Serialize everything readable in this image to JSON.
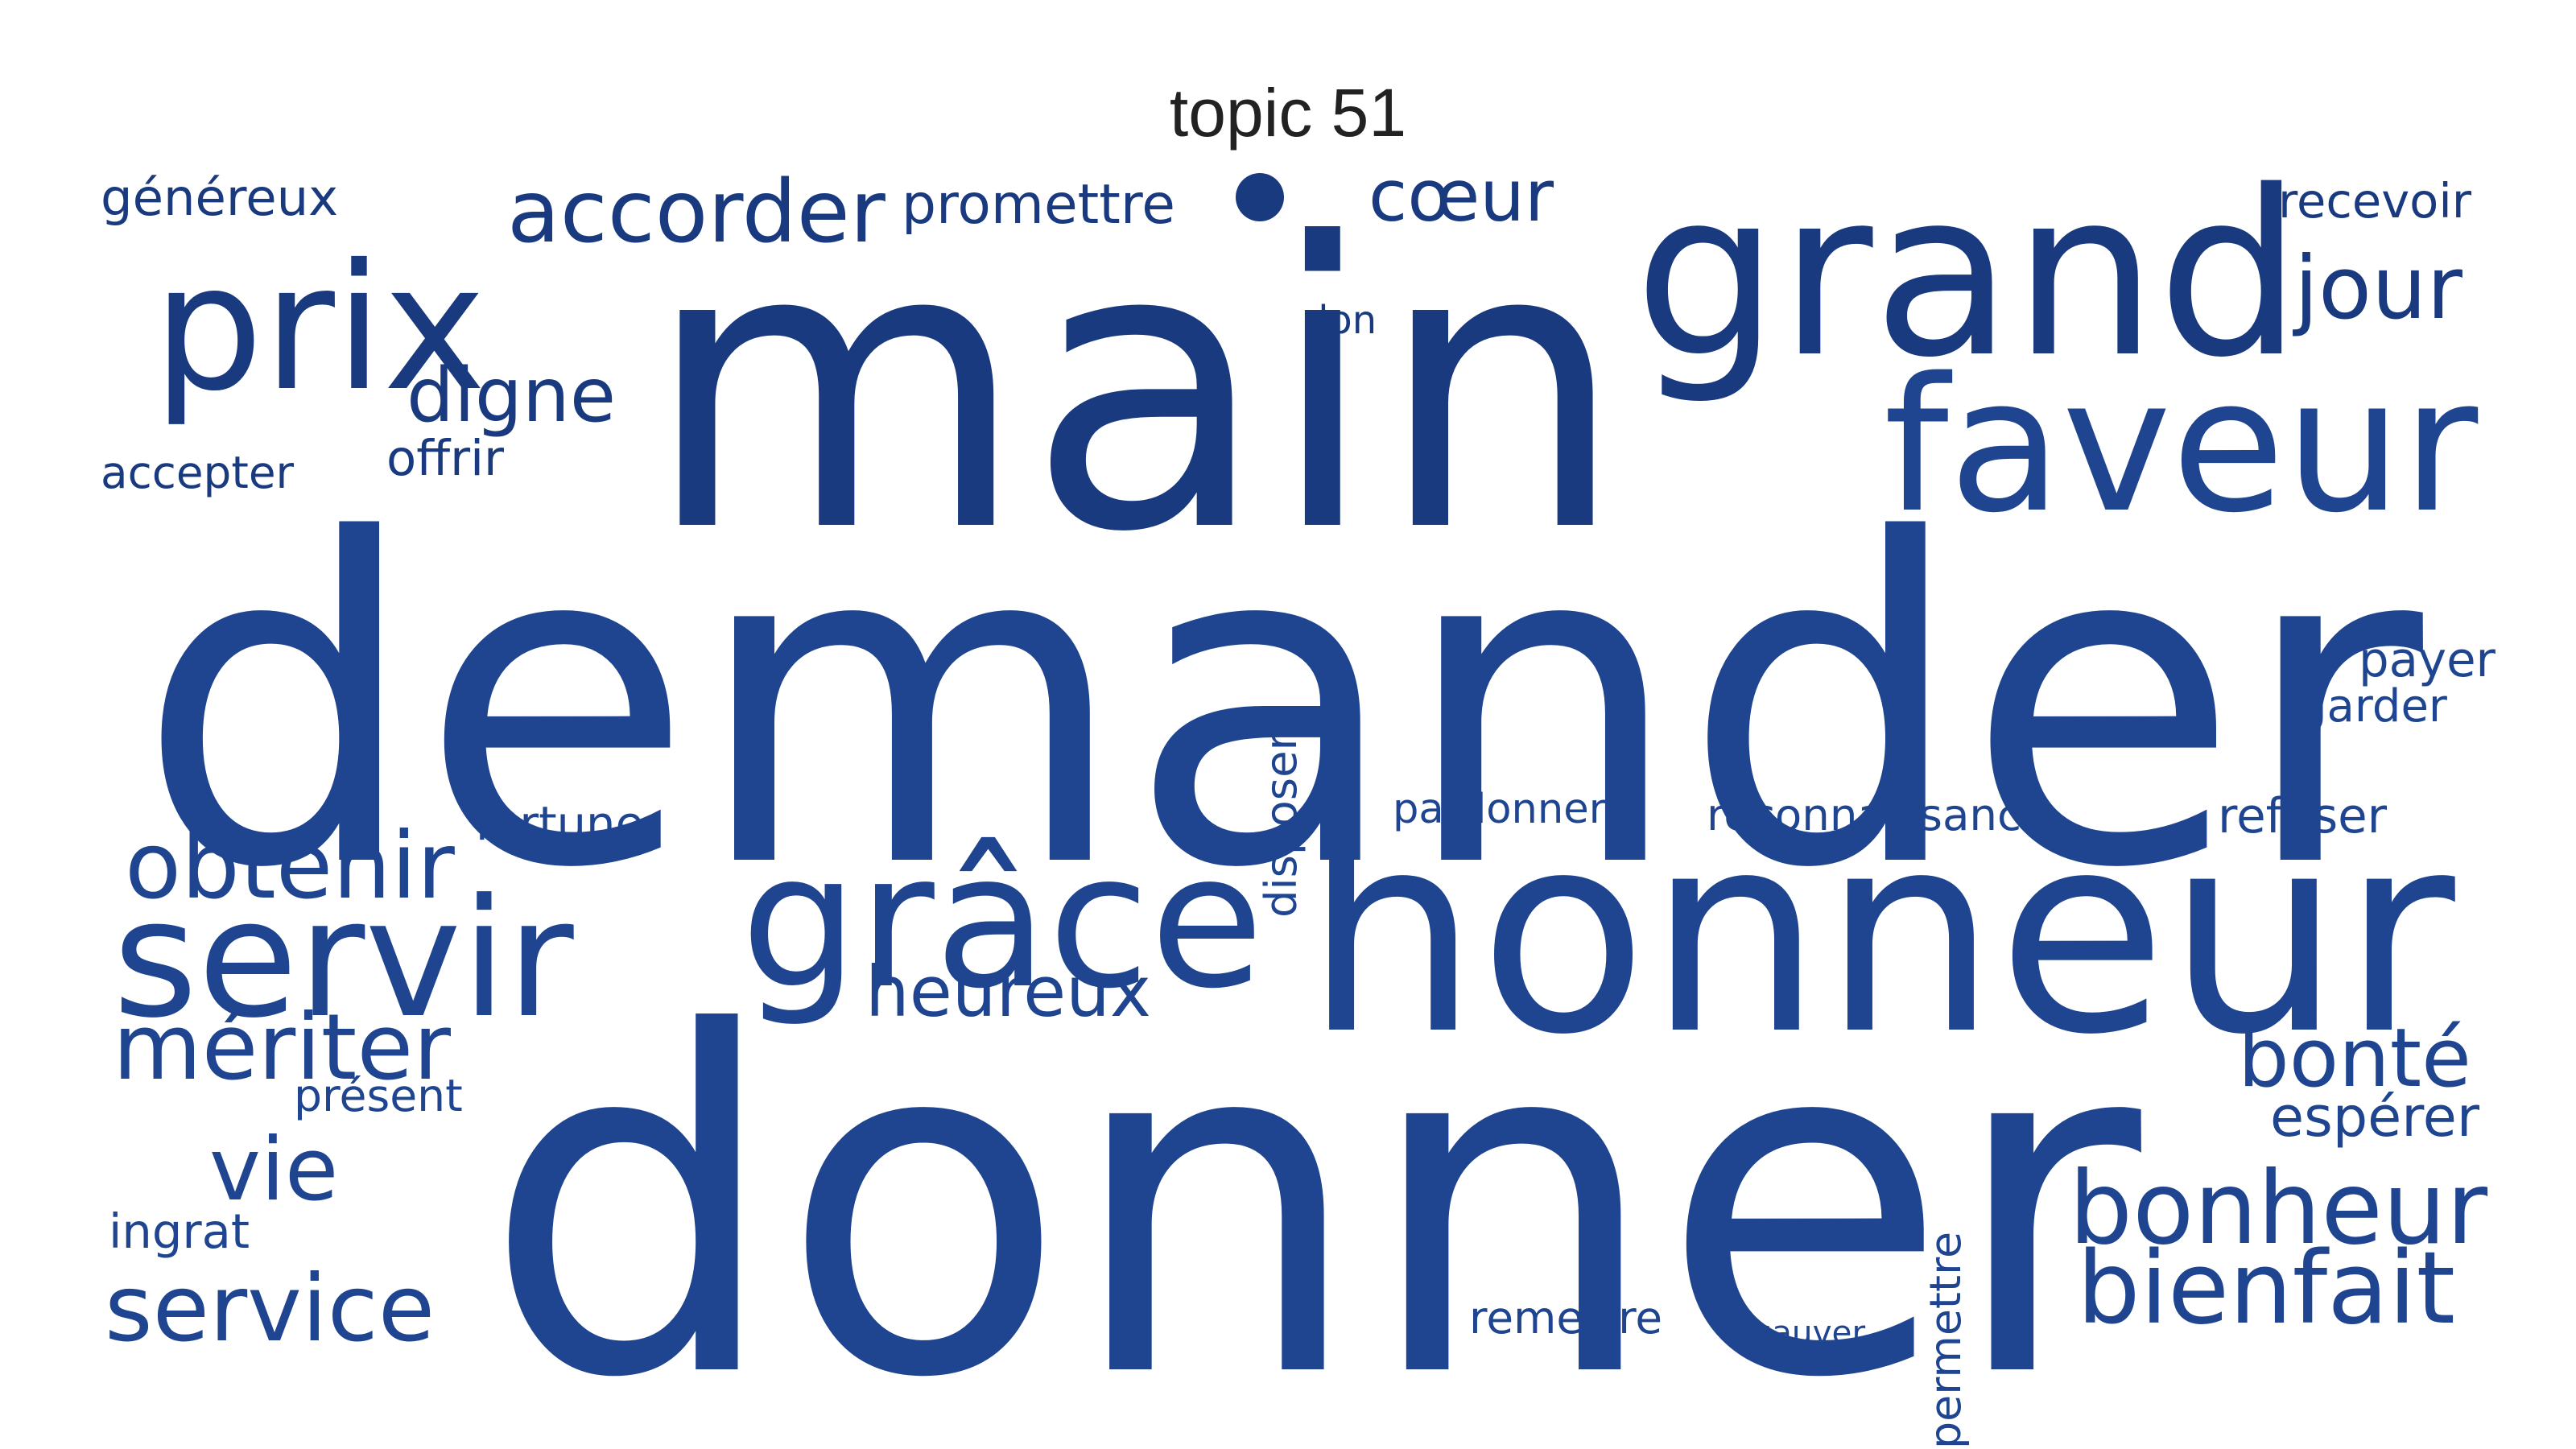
{
  "title": "topic 51",
  "accent_color": "#1f4591",
  "words": [
    {
      "id": "demander",
      "text": "demander",
      "weight": 1.0
    },
    {
      "id": "donner",
      "text": "donner",
      "weight": 0.92
    },
    {
      "id": "main",
      "text": "main",
      "weight": 0.8
    },
    {
      "id": "honneur",
      "text": "honneur",
      "weight": 0.64
    },
    {
      "id": "grand",
      "text": "grand",
      "weight": 0.56
    },
    {
      "id": "grace",
      "text": "grâce",
      "weight": 0.46
    },
    {
      "id": "faveur",
      "text": "faveur",
      "weight": 0.4
    },
    {
      "id": "prix",
      "text": "prix",
      "weight": 0.38
    },
    {
      "id": "servir",
      "text": "servir",
      "weight": 0.36
    },
    {
      "id": "bonheur",
      "text": "bonheur",
      "weight": 0.26
    },
    {
      "id": "obtenir",
      "text": "obtenir",
      "weight": 0.23
    },
    {
      "id": "accorder",
      "text": "accorder",
      "weight": 0.23
    },
    {
      "id": "meriter",
      "text": "mériter",
      "weight": 0.23
    },
    {
      "id": "bienfait",
      "text": "bienfait",
      "weight": 0.22
    },
    {
      "id": "coeur",
      "text": "cœur",
      "weight": 0.22
    },
    {
      "id": "service",
      "text": "service",
      "weight": 0.22
    },
    {
      "id": "bonte",
      "text": "bonté",
      "weight": 0.21
    },
    {
      "id": "vie",
      "text": "vie",
      "weight": 0.21
    },
    {
      "id": "jour",
      "text": "jour",
      "weight": 0.21
    },
    {
      "id": "digne",
      "text": "digne",
      "weight": 0.18
    },
    {
      "id": "heureux",
      "text": "heureux",
      "weight": 0.18
    },
    {
      "id": "esperer",
      "text": "espérer",
      "weight": 0.15
    },
    {
      "id": "promettre",
      "text": "promettre",
      "weight": 0.14
    },
    {
      "id": "genereux",
      "text": "généreux",
      "weight": 0.14
    },
    {
      "id": "reconnaissance",
      "text": "reconnaissance",
      "weight": 0.12
    },
    {
      "id": "pardonner",
      "text": "pardonner",
      "weight": 0.12
    },
    {
      "id": "refuser",
      "text": "refuser",
      "weight": 0.12
    },
    {
      "id": "remettre",
      "text": "remettre",
      "weight": 0.12
    },
    {
      "id": "disposer",
      "text": "disposer",
      "weight": 0.12
    },
    {
      "id": "permettre",
      "text": "permettre",
      "weight": 0.12
    },
    {
      "id": "recevoir",
      "text": "recevoir",
      "weight": 0.11
    },
    {
      "id": "payer",
      "text": "payer",
      "weight": 0.11
    },
    {
      "id": "garder",
      "text": "garder",
      "weight": 0.11
    },
    {
      "id": "fortune",
      "text": "fortune",
      "weight": 0.11
    },
    {
      "id": "accepter",
      "text": "accepter",
      "weight": 0.11
    },
    {
      "id": "offrir",
      "text": "offrir",
      "weight": 0.11
    },
    {
      "id": "present",
      "text": "présent",
      "weight": 0.11
    },
    {
      "id": "ingrat",
      "text": "ingrat",
      "weight": 0.1
    },
    {
      "id": "don",
      "text": "don",
      "weight": 0.1
    },
    {
      "id": "sauver",
      "text": "sauver",
      "weight": 0.1
    }
  ]
}
